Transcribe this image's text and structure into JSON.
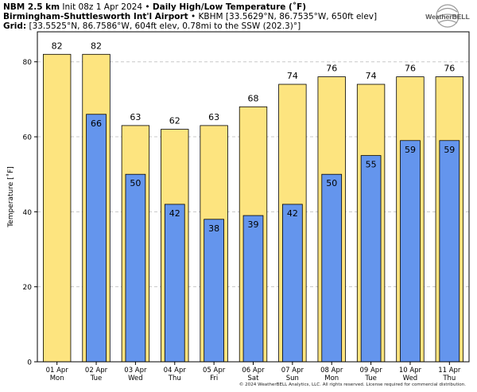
{
  "header": {
    "model": "NBM 2.5 km",
    "init": "Init 08z 1 Apr 2024",
    "title": "Daily High/Low Temperature (˚F)",
    "station_name": "Birmingham-Shuttlesworth Int'l Airport",
    "station_info": "KBHM [33.5629°N, 86.7535°W, 650ft elev]",
    "grid_label": "Grid:",
    "grid_info": "[33.5525°N, 86.7586°W, 604ft elev, 0.78mi to the SSW (202.3)°]"
  },
  "logo": {
    "text": "WeatherBELL"
  },
  "footer": "© 2024 WeatherBELL Analytics, LLC. All rights reserved. License required for commercial distribution.",
  "colors": {
    "high": "#fde47f",
    "low": "#6495ed",
    "grid": "#c8c8c8",
    "bar_edge": "#000000"
  },
  "chart_data": {
    "type": "bar",
    "categories": [
      "01 Apr\nMon",
      "02 Apr\nTue",
      "03 Apr\nWed",
      "04 Apr\nThu",
      "05 Apr\nFri",
      "06 Apr\nSat",
      "07 Apr\nSun",
      "08 Apr\nMon",
      "09 Apr\nTue",
      "10 Apr\nWed",
      "11 Apr\nThu"
    ],
    "series": [
      {
        "values": [
          82,
          82,
          63,
          62,
          63,
          68,
          74,
          76,
          74,
          76,
          76
        ]
      },
      {
        "values": [
          null,
          66,
          50,
          42,
          38,
          39,
          42,
          50,
          55,
          59,
          59
        ]
      }
    ],
    "ylabel": "Temperature [˚F]",
    "ylim": [
      0,
      88
    ],
    "yticks": [
      0,
      20,
      40,
      60,
      80
    ],
    "grid": true,
    "grid_style": "dashed"
  }
}
